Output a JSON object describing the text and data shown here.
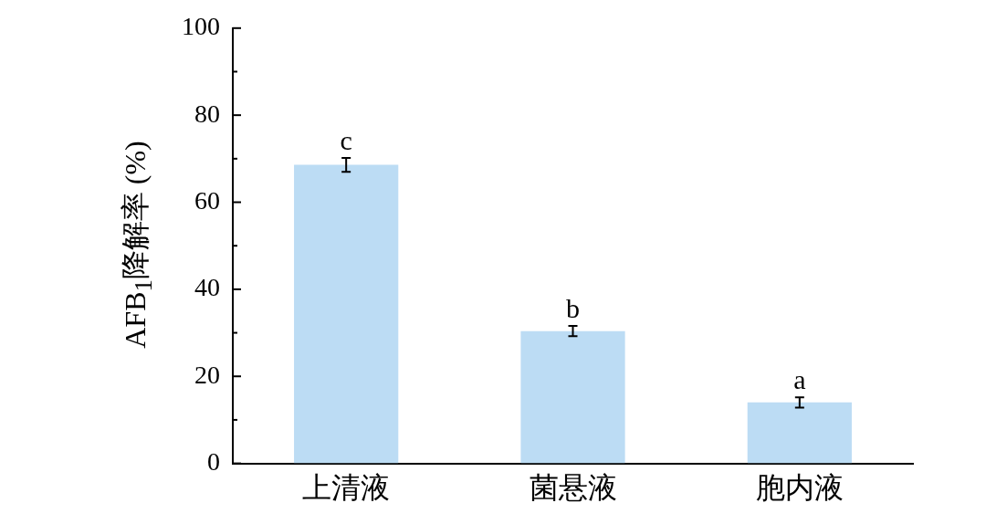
{
  "chart_data": {
    "type": "bar",
    "ylabel": "AFB$_{1}$降解率 (%)",
    "categories": [
      "上清液",
      "菌悬液",
      "胞内液"
    ],
    "values": [
      68.6,
      30.4,
      14.0
    ],
    "errors": [
      1.6,
      1.2,
      1.2
    ],
    "color": "#bcdcf4",
    "ylim": [
      0,
      100
    ],
    "yticks": [
      0,
      {
        "value": 10,
        "label": null
      },
      20,
      {
        "value": 30,
        "label": null
      },
      40,
      {
        "value": 50,
        "label": null
      },
      60,
      {
        "value": 70,
        "label": null
      },
      80,
      {
        "value": 90,
        "label": null
      },
      100
    ],
    "grid": false,
    "legend": false,
    "annotations": [
      {
        "text": "c",
        "x": "上清液",
        "y": 70.2
      },
      {
        "text": "b",
        "x": "菌悬液",
        "y": 31.6
      },
      {
        "text": "a",
        "x": "胞内液",
        "y": 15.2
      }
    ]
  }
}
